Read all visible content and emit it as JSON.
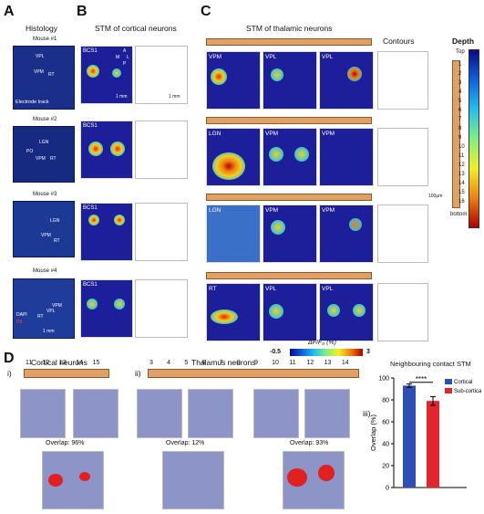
{
  "panels": {
    "A": {
      "letter": "A",
      "title": "Histology",
      "mice": [
        "Mouse #1",
        "Mouse #2",
        "Mouse #3",
        "Mouse #4"
      ],
      "m1_labels": [
        "RT",
        "VPM",
        "VPL",
        "Electrode track"
      ],
      "m2_labels": [
        "LGN",
        "PO",
        "VPM",
        "RT"
      ],
      "m3_labels": [
        "LGN",
        "VPM",
        "RT"
      ],
      "m4_labels": [
        "DAPI",
        "DiI",
        "RT",
        "VPL",
        "VPM"
      ],
      "scale": "1 mm"
    },
    "B": {
      "letter": "B",
      "title": "STM of cortical neurons",
      "labels": [
        "BCS1",
        "BCS1",
        "BCS1",
        "BCS1"
      ],
      "orient": [
        "A",
        "M",
        "L",
        "P"
      ],
      "scale": "1 mm"
    },
    "C": {
      "letter": "C",
      "title": "STM of thalamic neurons",
      "contours_title": "Contours",
      "rows": [
        [
          "VPM",
          "VPL",
          "VPL"
        ],
        [
          "LGN",
          "VPM",
          "VPM"
        ],
        [
          "LGN",
          "VPM",
          "VPM"
        ],
        [
          "RT",
          "VPL",
          "VPL"
        ]
      ],
      "depth": {
        "title": "Depth",
        "top": "Top",
        "bottom": "bottom",
        "channels": [
          "1",
          "2",
          "3",
          "4",
          "5",
          "6",
          "7",
          "8",
          "9",
          "10",
          "11",
          "12",
          "13",
          "14",
          "15",
          "16"
        ],
        "scale": "100μm"
      },
      "colorbar": {
        "label": "ΔF/F₀ (%)",
        "min": "-0.5",
        "max": "3"
      }
    },
    "D": {
      "letter": "D",
      "i": {
        "roman": "i)",
        "title": "Cortical neurons",
        "channels": [
          "11",
          "12",
          "13",
          "14",
          "15"
        ],
        "overlap": "Overlap: 96%"
      },
      "ii": {
        "roman": "ii)",
        "title": "Thalamus neurons",
        "channels": [
          "3",
          "4",
          "5",
          "6",
          "7",
          "8",
          "9",
          "10",
          "11",
          "12",
          "13",
          "14"
        ],
        "overlaps": [
          "Overlap: 12%",
          "Overlap: 93%"
        ]
      },
      "iii": {
        "roman": "iii)",
        "title": "Neighbouring contact STM",
        "significance": "****"
      }
    }
  },
  "chart_data": {
    "type": "bar",
    "title": "Neighbouring contact STM",
    "categories": [
      "Cortical",
      "Sub-cortical"
    ],
    "values": [
      93,
      79
    ],
    "errors": [
      1.5,
      4
    ],
    "colors": [
      "#2b4fb5",
      "#e3262d"
    ],
    "ylabel": "Overlap (%)",
    "xlabel": "",
    "ylim": [
      0,
      100
    ],
    "yticks": [
      "0",
      "20",
      "40",
      "60",
      "80",
      "100"
    ],
    "legend": "top-right"
  }
}
